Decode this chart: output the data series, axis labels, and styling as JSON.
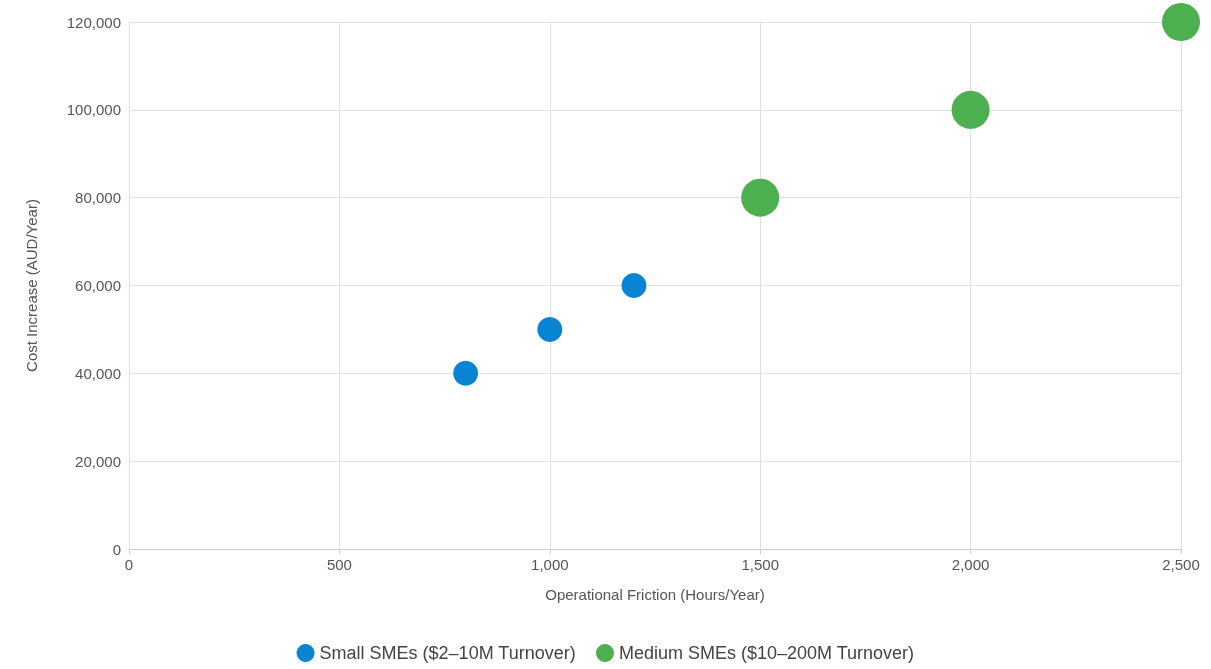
{
  "chart_data": {
    "type": "bubble",
    "xlabel": "Operational Friction (Hours/Year)",
    "ylabel": "Cost Increase (AUD/Year)",
    "xlim": [
      0,
      2500
    ],
    "xticks": [
      {
        "value": 0,
        "label": "0"
      },
      {
        "value": 500,
        "label": "500"
      },
      {
        "value": 1000,
        "label": "1,000"
      },
      {
        "value": 1500,
        "label": "1,500"
      },
      {
        "value": 2000,
        "label": "2,000"
      },
      {
        "value": 2500,
        "label": "2,500"
      }
    ],
    "ylim": [
      0,
      120000
    ],
    "yticks": [
      {
        "value": 0,
        "label": "0"
      },
      {
        "value": 20000,
        "label": "20,000"
      },
      {
        "value": 40000,
        "label": "40,000"
      },
      {
        "value": 60000,
        "label": "60,000"
      },
      {
        "value": 80000,
        "label": "80,000"
      },
      {
        "value": 100000,
        "label": "100,000"
      },
      {
        "value": 120000,
        "label": "120,000"
      }
    ],
    "grid": true,
    "legend": "bottom",
    "marker": "circle",
    "series": [
      {
        "name": "Small SMEs ($2–10M Turnover)",
        "color": "#0984d3",
        "x": [
          800,
          1000,
          1200
        ],
        "values": [
          40000,
          50000,
          60000
        ],
        "sizes": [
          0.43,
          0.43,
          0.43
        ]
      },
      {
        "name": "Medium SMEs ($10–200M Turnover)",
        "color": "#4caf50",
        "x": [
          1500,
          2000,
          2500
        ],
        "values": [
          80000,
          100000,
          120000
        ],
        "sizes": [
          1,
          1,
          1
        ]
      }
    ]
  }
}
